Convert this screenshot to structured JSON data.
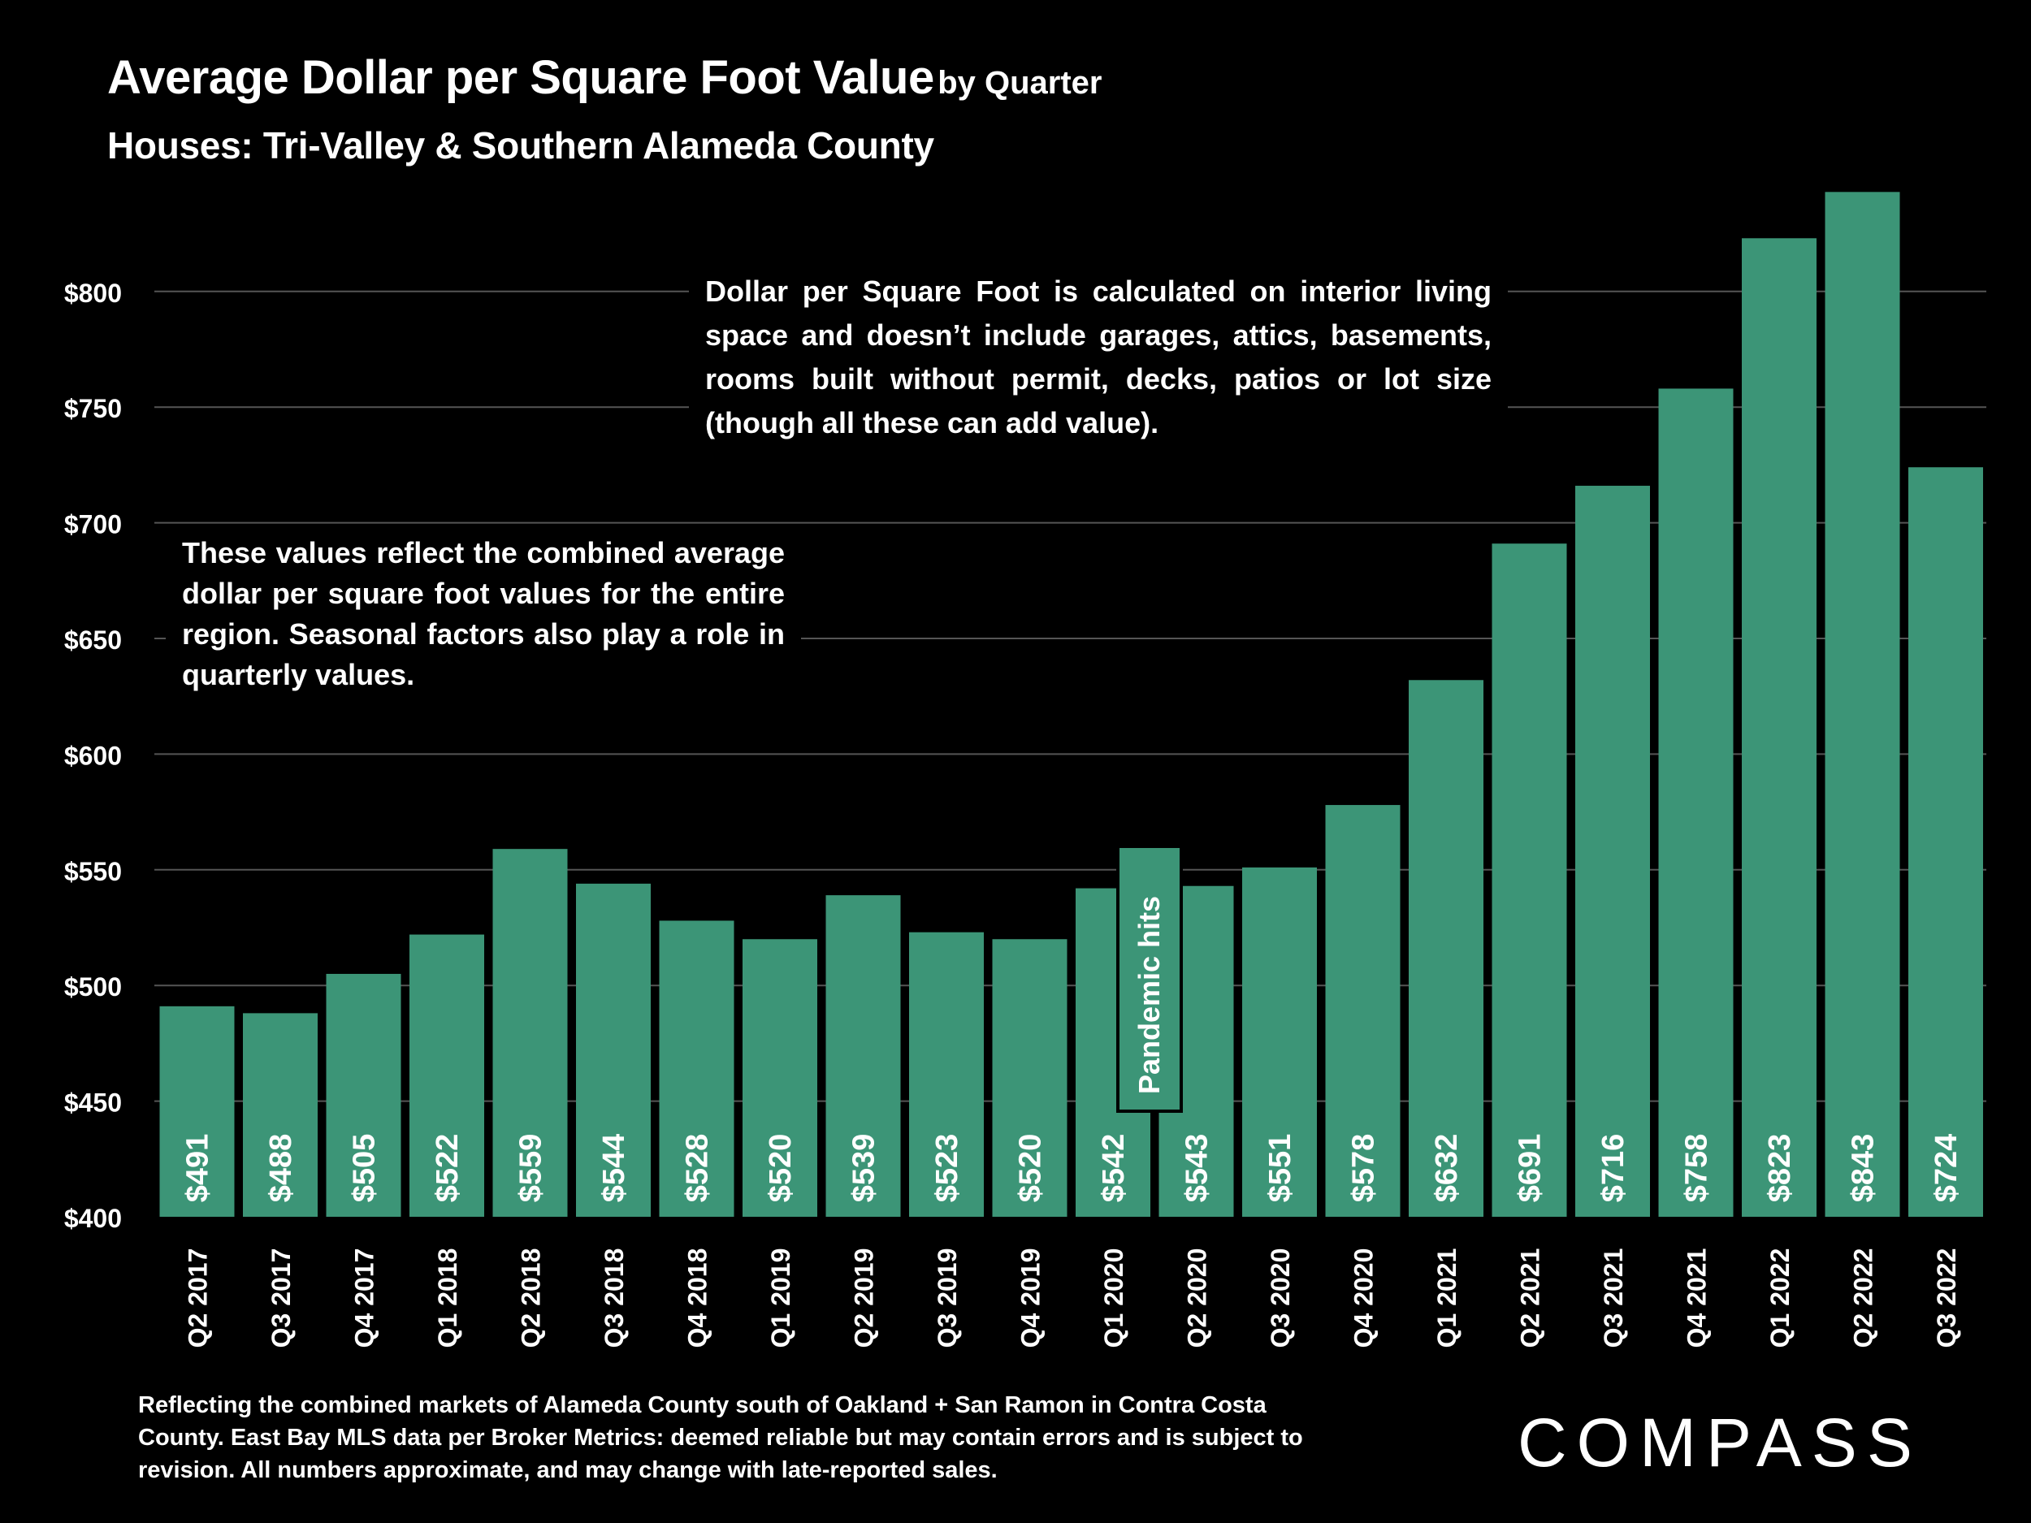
{
  "title": "Average Dollar per Square Foot Value",
  "title_suffix": "by Quarter",
  "subtitle": "Houses: Tri-Valley & Southern Alameda County",
  "note_top": "Dollar per Square Foot is calculated on interior living space and doesn’t include garages, attics, basements, rooms built without permit, decks, patios or lot size (though all these can add value).",
  "note_left": "These values reflect the combined average dollar per square foot values for the entire region. Seasonal factors also play a role in quarterly values.",
  "footnote": "Reflecting the combined markets of Alameda County south of Oakland + San Ramon in Contra Costa County. East Bay MLS data per Broker Metrics: deemed reliable but may contain errors and is subject to revision. All numbers approximate, and may change with late-reported sales.",
  "logo": "COMPASS",
  "colors": {
    "background": "#000000",
    "bar": "#3c9577",
    "text": "#ffffff",
    "grid": "#555555"
  },
  "chart_data": {
    "type": "bar",
    "categories": [
      "Q2 2017",
      "Q3 2017",
      "Q4 2017",
      "Q1 2018",
      "Q2 2018",
      "Q3 2018",
      "Q4 2018",
      "Q1 2019",
      "Q2 2019",
      "Q3 2019",
      "Q4 2019",
      "Q1 2020",
      "Q2 2020",
      "Q3 2020",
      "Q4 2020",
      "Q1 2021",
      "Q2 2021",
      "Q3 2021",
      "Q4 2021",
      "Q1 2022",
      "Q2 2022",
      "Q3 2022"
    ],
    "values": [
      491,
      488,
      505,
      522,
      559,
      544,
      528,
      520,
      539,
      523,
      520,
      542,
      543,
      551,
      578,
      632,
      691,
      716,
      758,
      823,
      843,
      724
    ],
    "value_labels": [
      "$491",
      "$488",
      "$505",
      "$522",
      "$559",
      "$544",
      "$528",
      "$520",
      "$539",
      "$523",
      "$520",
      "$542",
      "$543",
      "$551",
      "$578",
      "$632",
      "$691",
      "$716",
      "$758",
      "$823",
      "$843",
      "$724"
    ],
    "yticks": [
      400,
      450,
      500,
      550,
      600,
      650,
      700,
      750,
      800
    ],
    "ytick_labels": [
      "$400",
      "$450",
      "$500",
      "$550",
      "$600",
      "$650",
      "$700",
      "$750",
      "$800"
    ],
    "ylim": [
      400,
      845
    ],
    "xlabel": "",
    "ylabel": "",
    "grid": true,
    "annotation": {
      "text": "Pandemic hits",
      "category": "Q1 2020"
    }
  }
}
